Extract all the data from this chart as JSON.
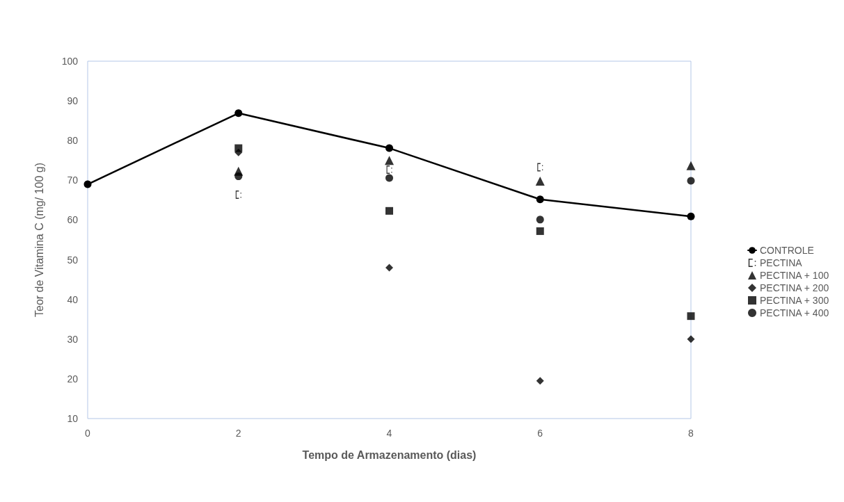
{
  "chart_data": {
    "type": "scatter",
    "xlabel": "Tempo de Armazenamento (dias)",
    "ylabel": "Teor de Vitamina C (mg/ 100 g)",
    "x": [
      0,
      2,
      4,
      6,
      8
    ],
    "xlim": [
      0,
      8
    ],
    "xticks": [
      0,
      2,
      4,
      6,
      8
    ],
    "ylim": [
      10,
      100
    ],
    "yticks": [
      10,
      20,
      30,
      40,
      50,
      60,
      70,
      80,
      90,
      100
    ],
    "grid": false,
    "legend": "right",
    "series": [
      {
        "name": "CONTROLE",
        "type": "line",
        "marker": "circle",
        "line_style": "solid",
        "color": "#000000",
        "values": [
          69,
          86.9,
          78.1,
          65.2,
          60.9
        ]
      },
      {
        "name": "PECTINA",
        "marker": "cross",
        "color": "#000000",
        "values": [
          null,
          66.4,
          72.7,
          73.3,
          null
        ]
      },
      {
        "name": "PECTINA + 100",
        "marker": "triangle",
        "color": "#000000",
        "values": [
          null,
          72.3,
          75.0,
          69.8,
          73.7
        ]
      },
      {
        "name": "PECTINA + 200",
        "marker": "diamond",
        "color": "#000000",
        "values": [
          null,
          77.0,
          48.0,
          19.5,
          30.0
        ]
      },
      {
        "name": "PECTINA + 300",
        "marker": "square",
        "color": "#000000",
        "values": [
          null,
          78.1,
          62.3,
          57.2,
          35.8
        ]
      },
      {
        "name": "PECTINA + 400",
        "marker": "circle",
        "color": "#000000",
        "values": [
          null,
          71.0,
          70.6,
          60.1,
          69.9
        ]
      }
    ]
  }
}
